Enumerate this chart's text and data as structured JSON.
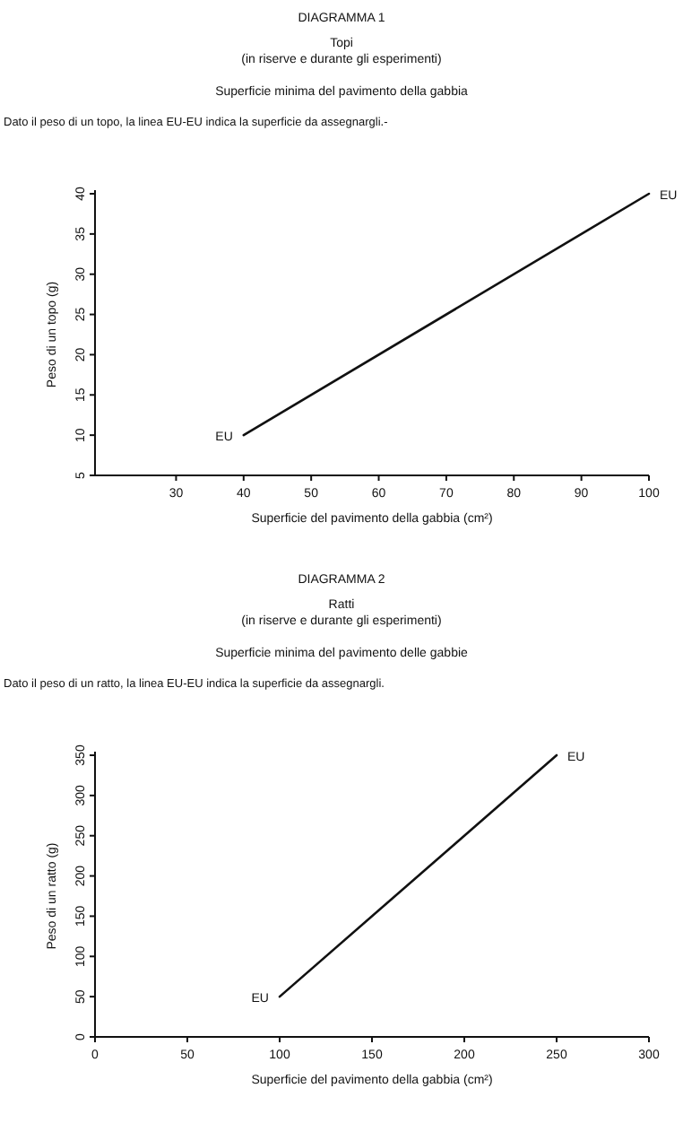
{
  "chart_data": [
    {
      "type": "line",
      "title": "DIAGRAMMA 1",
      "subtitle": "Topi\n(in riserve e durante gli esperimenti)\n\nSuperficie minima del pavimento della gabbia",
      "xlabel": "Superficie del pavimento della gabbia (cm²)",
      "ylabel": "Peso di un topo (g)",
      "xlim": [
        18,
        100
      ],
      "xticks": [
        30,
        40,
        50,
        60,
        70,
        80,
        90,
        100
      ],
      "ylim": [
        5,
        40
      ],
      "yticks": [
        5,
        10,
        15,
        20,
        25,
        30,
        35,
        40
      ],
      "series": [
        {
          "x": [
            40,
            100
          ],
          "values": [
            10,
            40
          ],
          "color": "#111111"
        }
      ],
      "annotations": [
        "Dato il peso di un topo, la linea EU-EU indica la superficie da assegnargli.-",
        {
          "text": "EU",
          "x": 40,
          "y": 10
        },
        {
          "text": "EU",
          "x": 100,
          "y": 40
        }
      ]
    },
    {
      "type": "line",
      "title": "DIAGRAMMA 2",
      "subtitle": "Ratti\n(in riserve e durante gli esperimenti)\n\nSuperficie minima del pavimento delle gabbie",
      "xlabel": "Superficie del pavimento della gabbia (cm²)",
      "ylabel": "Peso di un ratto (g)",
      "xlim": [
        0,
        300
      ],
      "xticks": [
        0,
        50,
        100,
        150,
        200,
        250,
        300
      ],
      "ylim": [
        0,
        350
      ],
      "yticks": [
        0,
        50,
        100,
        150,
        200,
        250,
        300,
        350
      ],
      "series": [
        {
          "x": [
            100,
            250
          ],
          "values": [
            50,
            350
          ],
          "color": "#111111"
        }
      ],
      "annotations": [
        "Dato il peso di un ratto, la linea EU-EU indica la superficie da assegnargli.",
        {
          "text": "EU",
          "x": 100,
          "y": 50
        },
        {
          "text": "EU",
          "x": 250,
          "y": 350
        }
      ]
    }
  ]
}
